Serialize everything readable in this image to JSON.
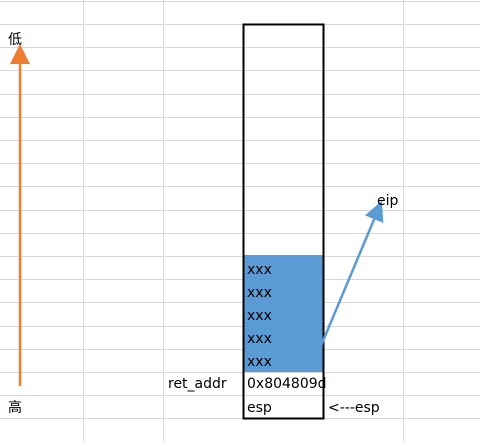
{
  "axis": {
    "top": "低",
    "bottom": "高"
  },
  "stack": {
    "cells": [
      "xxx",
      "xxx",
      "xxx",
      "xxx",
      "xxx"
    ],
    "ret_addr_label": "ret_addr",
    "ret_addr_value": "0x804809d",
    "esp_cell": "esp"
  },
  "esp_pointer": "<---esp",
  "eip_label": "eip"
}
